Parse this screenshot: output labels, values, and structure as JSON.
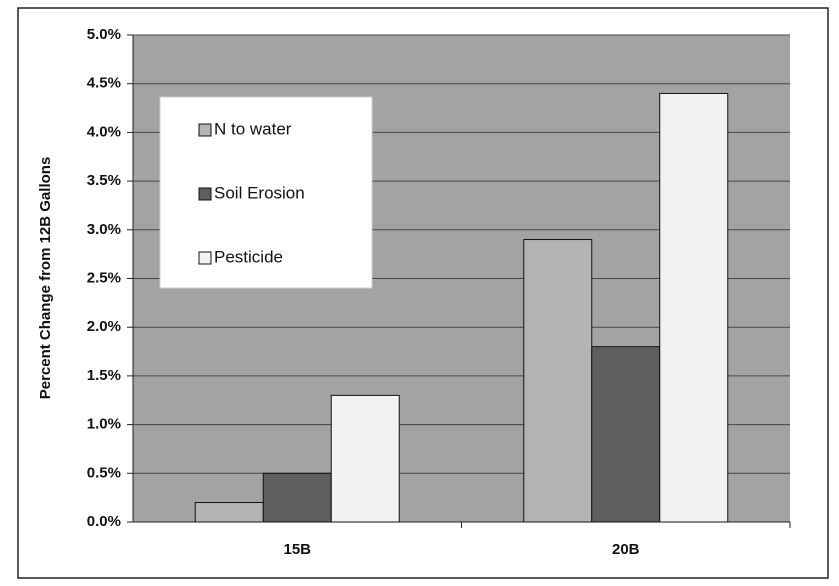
{
  "chart_data": {
    "type": "bar",
    "y_axis_label": "Percent Change from 12B Gallons",
    "categories": [
      "15B",
      "20B"
    ],
    "series": [
      {
        "name": "N to water",
        "color": "#b4b4b4",
        "values": [
          0.2,
          2.9
        ]
      },
      {
        "name": "Soil Erosion",
        "color": "#5e5e5e",
        "values": [
          0.5,
          1.8
        ]
      },
      {
        "name": "Pesticide",
        "color": "#f2f2f2",
        "values": [
          1.3,
          4.4
        ]
      }
    ],
    "ylim": [
      0,
      5
    ],
    "yticks": [
      {
        "value": 0,
        "label": "0.0%"
      },
      {
        "value": 0.5,
        "label": "0.5%"
      },
      {
        "value": 1,
        "label": "1.0%"
      },
      {
        "value": 1.5,
        "label": "1.5%"
      },
      {
        "value": 2,
        "label": "2.0%"
      },
      {
        "value": 2.5,
        "label": "2.5%"
      },
      {
        "value": 3,
        "label": "3.0%"
      },
      {
        "value": 3.5,
        "label": "3.5%"
      },
      {
        "value": 4,
        "label": "4.0%"
      },
      {
        "value": 4.5,
        "label": "4.5%"
      },
      {
        "value": 5,
        "label": "5.0%"
      }
    ],
    "grid": true,
    "legend": "upper-left",
    "plot_background": "#a3a3a3"
  }
}
